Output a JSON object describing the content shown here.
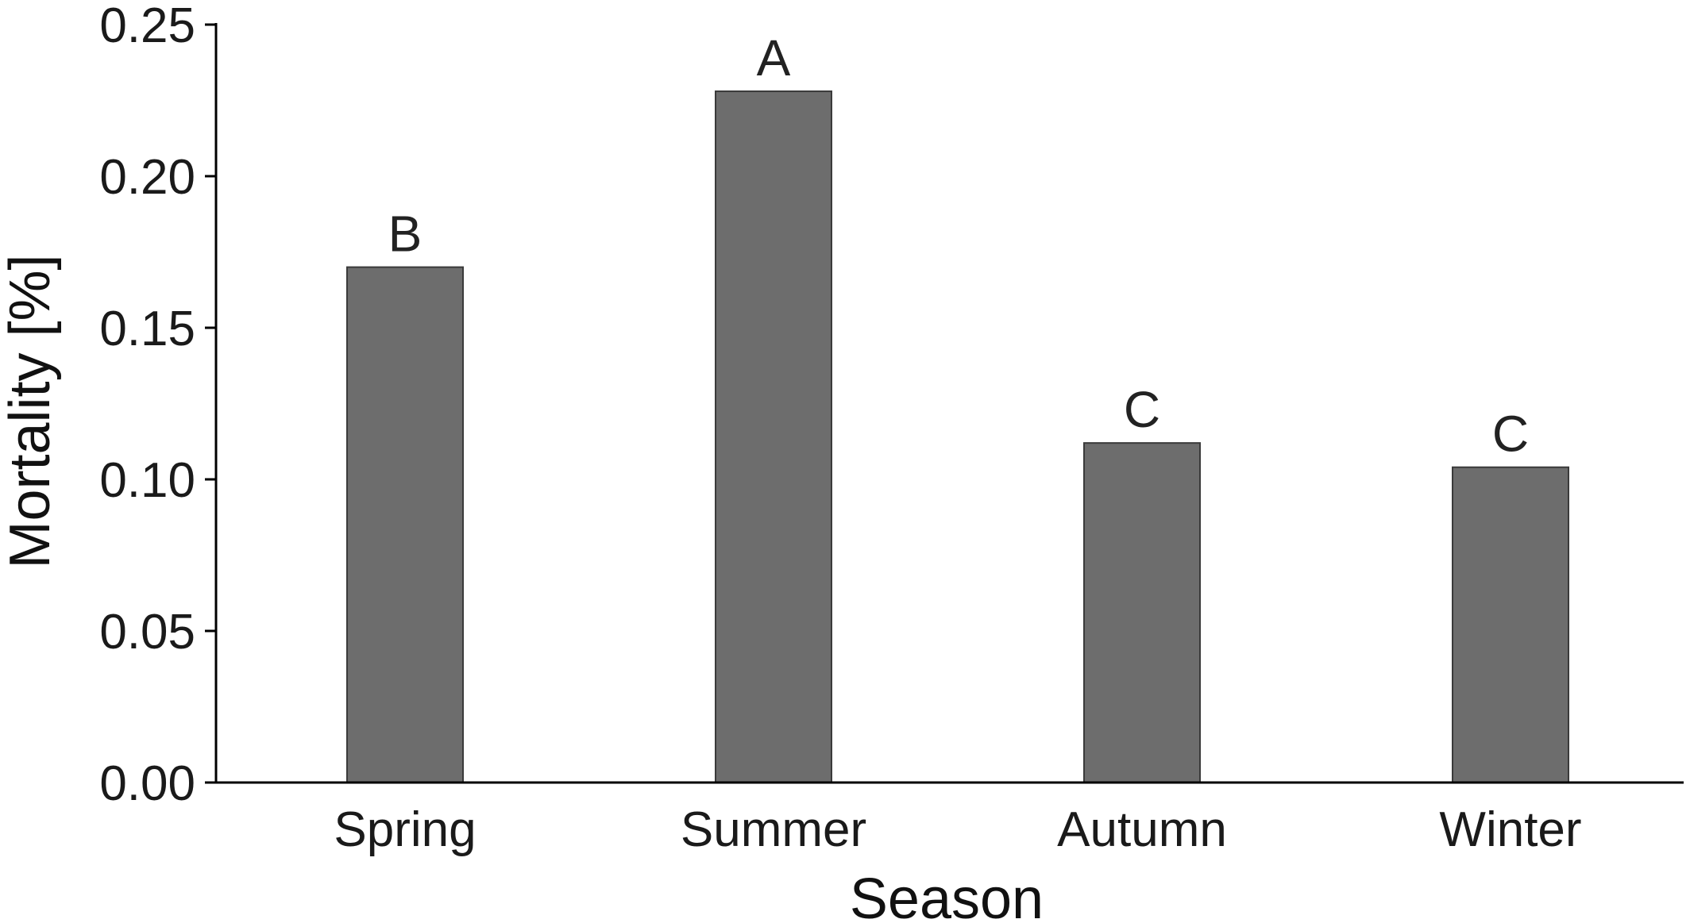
{
  "chart_data": {
    "type": "bar",
    "categories": [
      "Spring",
      "Summer",
      "Autumn",
      "Winter"
    ],
    "values": [
      0.17,
      0.228,
      0.112,
      0.104
    ],
    "group_labels": [
      "B",
      "A",
      "C",
      "C"
    ],
    "xlabel": "Season",
    "ylabel": "Mortality [%]",
    "ylim": [
      0,
      0.25
    ],
    "yticks": [
      "0.00",
      "0.05",
      "0.10",
      "0.15",
      "0.20",
      "0.25"
    ],
    "grid": false,
    "legend": "none",
    "colors": {
      "bar_fill": "#6d6d6d",
      "bar_stroke": "#3a3a3a",
      "axis": "#000000"
    }
  }
}
